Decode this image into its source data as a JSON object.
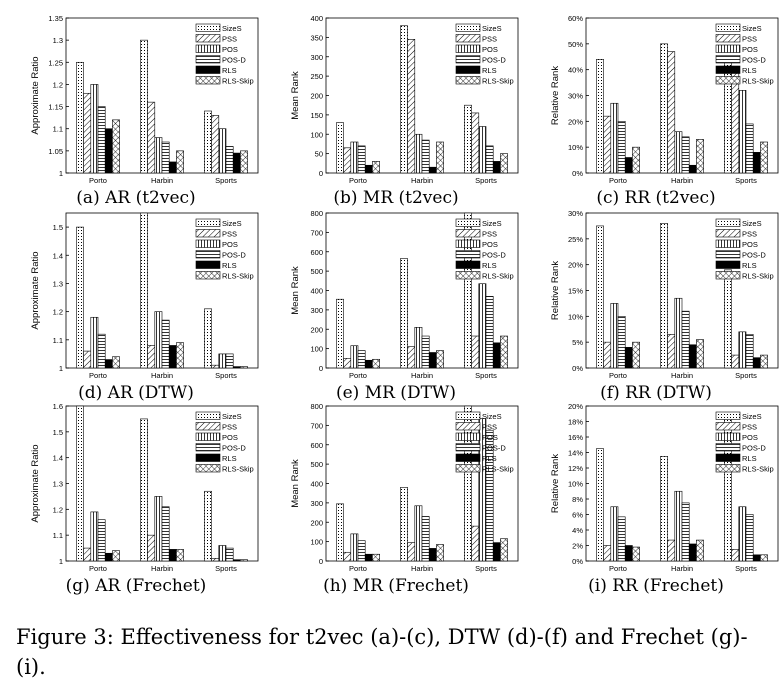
{
  "figure_caption": "Figure 3: Effectiveness for t2vec (a)-(c), DTW (d)-(f) and Frechet (g)-(i).",
  "legend": [
    "SizeS",
    "PSS",
    "POS",
    "POS-D",
    "RLS",
    "RLS-Skip"
  ],
  "chart_data": [
    {
      "type": "bar",
      "caption": "(a) AR (t2vec)",
      "ylabel": "Approximate Ratio",
      "ylim": [
        1,
        1.35
      ],
      "yticks": [
        "1",
        "1.05",
        "1.1",
        "1.15",
        "1.2",
        "1.25",
        "1.3",
        "1.35"
      ],
      "yticks_values": [
        1,
        1.05,
        1.1,
        1.15,
        1.2,
        1.25,
        1.3,
        1.35
      ],
      "categories": [
        "Porto",
        "Harbin",
        "Sports"
      ],
      "series": [
        {
          "name": "SizeS",
          "values": [
            1.25,
            1.3,
            1.14
          ]
        },
        {
          "name": "PSS",
          "values": [
            1.18,
            1.16,
            1.13
          ]
        },
        {
          "name": "POS",
          "values": [
            1.2,
            1.08,
            1.1
          ]
        },
        {
          "name": "POS-D",
          "values": [
            1.15,
            1.07,
            1.06
          ]
        },
        {
          "name": "RLS",
          "values": [
            1.1,
            1.025,
            1.045
          ]
        },
        {
          "name": "RLS-Skip",
          "values": [
            1.12,
            1.05,
            1.05
          ]
        }
      ]
    },
    {
      "type": "bar",
      "caption": "(b) MR (t2vec)",
      "ylabel": "Mean Rank",
      "ylim": [
        0,
        400
      ],
      "yticks": [
        "0",
        "50",
        "100",
        "150",
        "200",
        "250",
        "300",
        "350",
        "400"
      ],
      "yticks_values": [
        0,
        50,
        100,
        150,
        200,
        250,
        300,
        350,
        400
      ],
      "categories": [
        "Porto",
        "Harbin",
        "Sports"
      ],
      "series": [
        {
          "name": "SizeS",
          "values": [
            130,
            380,
            175
          ]
        },
        {
          "name": "PSS",
          "values": [
            65,
            345,
            155
          ]
        },
        {
          "name": "POS",
          "values": [
            80,
            100,
            120
          ]
        },
        {
          "name": "POS-D",
          "values": [
            70,
            85,
            70
          ]
        },
        {
          "name": "RLS",
          "values": [
            20,
            15,
            30
          ]
        },
        {
          "name": "RLS-Skip",
          "values": [
            30,
            80,
            50
          ]
        }
      ]
    },
    {
      "type": "bar",
      "caption": "(c) RR (t2vec)",
      "ylabel": "Relative Rank",
      "ylim": [
        0,
        0.6
      ],
      "yticks": [
        "0%",
        "10%",
        "20%",
        "30%",
        "40%",
        "50%",
        "60%"
      ],
      "yticks_values": [
        0,
        0.1,
        0.2,
        0.3,
        0.4,
        0.5,
        0.6
      ],
      "categories": [
        "Porto",
        "Harbin",
        "Sports"
      ],
      "series": [
        {
          "name": "SizeS",
          "values": [
            0.44,
            0.5,
            0.45
          ]
        },
        {
          "name": "PSS",
          "values": [
            0.22,
            0.47,
            0.41
          ]
        },
        {
          "name": "POS",
          "values": [
            0.27,
            0.16,
            0.32
          ]
        },
        {
          "name": "POS-D",
          "values": [
            0.2,
            0.14,
            0.19
          ]
        },
        {
          "name": "RLS",
          "values": [
            0.06,
            0.03,
            0.08
          ]
        },
        {
          "name": "RLS-Skip",
          "values": [
            0.1,
            0.13,
            0.12
          ]
        }
      ]
    },
    {
      "type": "bar",
      "caption": "(d) AR (DTW)",
      "ylabel": "Approximate Ratio",
      "ylim": [
        1,
        1.55
      ],
      "yticks": [
        "1",
        "1.1",
        "1.2",
        "1.3",
        "1.4",
        "1.5"
      ],
      "yticks_values": [
        1,
        1.1,
        1.2,
        1.3,
        1.4,
        1.5
      ],
      "categories": [
        "Porto",
        "Harbin",
        "Sports"
      ],
      "series": [
        {
          "name": "SizeS",
          "values": [
            1.5,
            1.55,
            1.21
          ]
        },
        {
          "name": "PSS",
          "values": [
            1.06,
            1.08,
            1.01
          ]
        },
        {
          "name": "POS",
          "values": [
            1.18,
            1.2,
            1.05
          ]
        },
        {
          "name": "POS-D",
          "values": [
            1.12,
            1.17,
            1.05
          ]
        },
        {
          "name": "RLS",
          "values": [
            1.03,
            1.08,
            1.005
          ]
        },
        {
          "name": "RLS-Skip",
          "values": [
            1.04,
            1.09,
            1.005
          ]
        }
      ]
    },
    {
      "type": "bar",
      "caption": "(e) MR (DTW)",
      "ylabel": "Mean Rank",
      "ylim": [
        0,
        800
      ],
      "yticks": [
        "0",
        "100",
        "200",
        "300",
        "400",
        "500",
        "600",
        "700",
        "800"
      ],
      "yticks_values": [
        0,
        100,
        200,
        300,
        400,
        500,
        600,
        700,
        800
      ],
      "categories": [
        "Porto",
        "Harbin",
        "Sports"
      ],
      "series": [
        {
          "name": "SizeS",
          "values": [
            355,
            565,
            800
          ]
        },
        {
          "name": "PSS",
          "values": [
            50,
            110,
            165
          ]
        },
        {
          "name": "POS",
          "values": [
            115,
            210,
            435
          ]
        },
        {
          "name": "POS-D",
          "values": [
            90,
            165,
            370
          ]
        },
        {
          "name": "RLS",
          "values": [
            40,
            80,
            130
          ]
        },
        {
          "name": "RLS-Skip",
          "values": [
            45,
            90,
            165
          ]
        }
      ]
    },
    {
      "type": "bar",
      "caption": "(f) RR (DTW)",
      "ylabel": "Relative Rank",
      "ylim": [
        0,
        0.3
      ],
      "yticks": [
        "0%",
        "5%",
        "10%",
        "15%",
        "20%",
        "25%",
        "30%"
      ],
      "yticks_values": [
        0,
        0.05,
        0.1,
        0.15,
        0.2,
        0.25,
        0.3
      ],
      "categories": [
        "Porto",
        "Harbin",
        "Sports"
      ],
      "series": [
        {
          "name": "SizeS",
          "values": [
            0.275,
            0.28,
            0.19
          ]
        },
        {
          "name": "PSS",
          "values": [
            0.05,
            0.065,
            0.025
          ]
        },
        {
          "name": "POS",
          "values": [
            0.125,
            0.135,
            0.07
          ]
        },
        {
          "name": "POS-D",
          "values": [
            0.1,
            0.11,
            0.065
          ]
        },
        {
          "name": "RLS",
          "values": [
            0.04,
            0.045,
            0.02
          ]
        },
        {
          "name": "RLS-Skip",
          "values": [
            0.05,
            0.055,
            0.025
          ]
        }
      ]
    },
    {
      "type": "bar",
      "caption": "(g) AR (Frechet)",
      "ylabel": "Approximate Ratio",
      "ylim": [
        1,
        1.6
      ],
      "yticks": [
        "1",
        "1.1",
        "1.2",
        "1.3",
        "1.4",
        "1.5",
        "1.6"
      ],
      "yticks_values": [
        1,
        1.1,
        1.2,
        1.3,
        1.4,
        1.5,
        1.6
      ],
      "categories": [
        "Porto",
        "Harbin",
        "Sports"
      ],
      "series": [
        {
          "name": "SizeS",
          "values": [
            1.6,
            1.55,
            1.27
          ]
        },
        {
          "name": "PSS",
          "values": [
            1.05,
            1.1,
            1.01
          ]
        },
        {
          "name": "POS",
          "values": [
            1.19,
            1.25,
            1.06
          ]
        },
        {
          "name": "POS-D",
          "values": [
            1.16,
            1.21,
            1.05
          ]
        },
        {
          "name": "RLS",
          "values": [
            1.03,
            1.045,
            1.005
          ]
        },
        {
          "name": "RLS-Skip",
          "values": [
            1.04,
            1.045,
            1.005
          ]
        }
      ]
    },
    {
      "type": "bar",
      "caption": "(h) MR (Frechet)",
      "ylabel": "Mean Rank",
      "ylim": [
        0,
        800
      ],
      "yticks": [
        "0",
        "100",
        "200",
        "300",
        "400",
        "500",
        "600",
        "700",
        "800"
      ],
      "yticks_values": [
        0,
        100,
        200,
        300,
        400,
        500,
        600,
        700,
        800
      ],
      "categories": [
        "Porto",
        "Harbin",
        "Sports"
      ],
      "series": [
        {
          "name": "SizeS",
          "values": [
            295,
            380,
            800
          ]
        },
        {
          "name": "PSS",
          "values": [
            45,
            95,
            180
          ]
        },
        {
          "name": "POS",
          "values": [
            140,
            285,
            735
          ]
        },
        {
          "name": "POS-D",
          "values": [
            105,
            230,
            675
          ]
        },
        {
          "name": "RLS",
          "values": [
            35,
            65,
            95
          ]
        },
        {
          "name": "RLS-Skip",
          "values": [
            35,
            85,
            115
          ]
        }
      ]
    },
    {
      "type": "bar",
      "caption": "(i) RR (Frechet)",
      "ylabel": "Relative Rank",
      "ylim": [
        0,
        0.2
      ],
      "yticks": [
        "0%",
        "2%",
        "4%",
        "6%",
        "8%",
        "10%",
        "12%",
        "14%",
        "16%",
        "18%",
        "20%"
      ],
      "yticks_values": [
        0,
        0.02,
        0.04,
        0.06,
        0.08,
        0.1,
        0.12,
        0.14,
        0.16,
        0.18,
        0.2
      ],
      "categories": [
        "Porto",
        "Harbin",
        "Sports"
      ],
      "series": [
        {
          "name": "SizeS",
          "values": [
            0.145,
            0.135,
            0.19
          ]
        },
        {
          "name": "PSS",
          "values": [
            0.02,
            0.027,
            0.015
          ]
        },
        {
          "name": "POS",
          "values": [
            0.07,
            0.09,
            0.07
          ]
        },
        {
          "name": "POS-D",
          "values": [
            0.057,
            0.075,
            0.06
          ]
        },
        {
          "name": "RLS",
          "values": [
            0.02,
            0.022,
            0.008
          ]
        },
        {
          "name": "RLS-Skip",
          "values": [
            0.018,
            0.027,
            0.008
          ]
        }
      ]
    }
  ]
}
